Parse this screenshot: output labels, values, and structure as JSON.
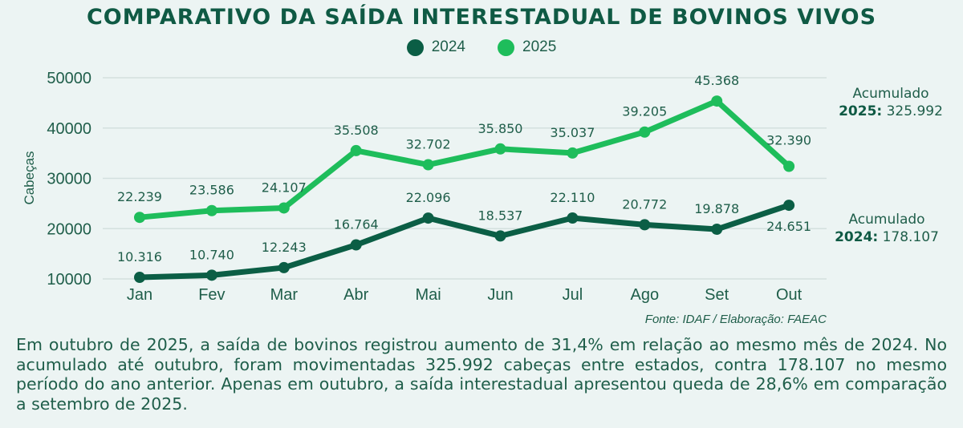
{
  "title": "COMPARATIVO DA SAÍDA INTERESTADUAL DE BOVINOS VIVOS",
  "colors": {
    "series_2024": "#0b5e45",
    "series_2025": "#1ebd5b",
    "text": "#1f5e4a",
    "grid": "#d3e0de"
  },
  "chart_data": {
    "type": "line",
    "title": "COMPARATIVO DA SAÍDA INTERESTADUAL DE BOVINOS VIVOS",
    "xlabel": "",
    "ylabel": "Cabeças",
    "categories": [
      "Jan",
      "Fev",
      "Mar",
      "Abr",
      "Mai",
      "Jun",
      "Jul",
      "Ago",
      "Set",
      "Out"
    ],
    "yticks": [
      10000,
      20000,
      30000,
      40000,
      50000
    ],
    "ylim": [
      10000,
      50000
    ],
    "grid": true,
    "legend_position": "top-center",
    "series": [
      {
        "name": "2024",
        "values": [
          10316,
          10740,
          12243,
          16764,
          22096,
          18537,
          22110,
          20772,
          19878,
          24651
        ],
        "labels": [
          "10.316",
          "10.740",
          "12.243",
          "16.764",
          "22.096",
          "18.537",
          "22.110",
          "20.772",
          "19.878",
          "24.651"
        ]
      },
      {
        "name": "2025",
        "values": [
          22239,
          23586,
          24107,
          35508,
          32702,
          35850,
          35037,
          39205,
          45368,
          32390
        ],
        "labels": [
          "22.239",
          "23.586",
          "24.107",
          "35.508",
          "32.702",
          "35.850",
          "35.037",
          "39.205",
          "45.368",
          "32.390"
        ]
      }
    ]
  },
  "accumulated": [
    {
      "heading": "Acumulado",
      "year": "2025:",
      "value": "325.992"
    },
    {
      "heading": "Acumulado",
      "year": "2024:",
      "value": "178.107"
    }
  ],
  "source": "Fonte: IDAF / Elaboração: FAEAC",
  "summary": "Em outubro de 2025, a saída de bovinos registrou aumento de 31,4% em relação ao mesmo mês de 2024. No acumulado até outubro, foram movimentadas 325.992 cabeças entre estados, contra 178.107 no mesmo período do ano anterior. Apenas em outubro, a saída interestadual apresentou queda de 28,6% em comparação a setembro de 2025."
}
